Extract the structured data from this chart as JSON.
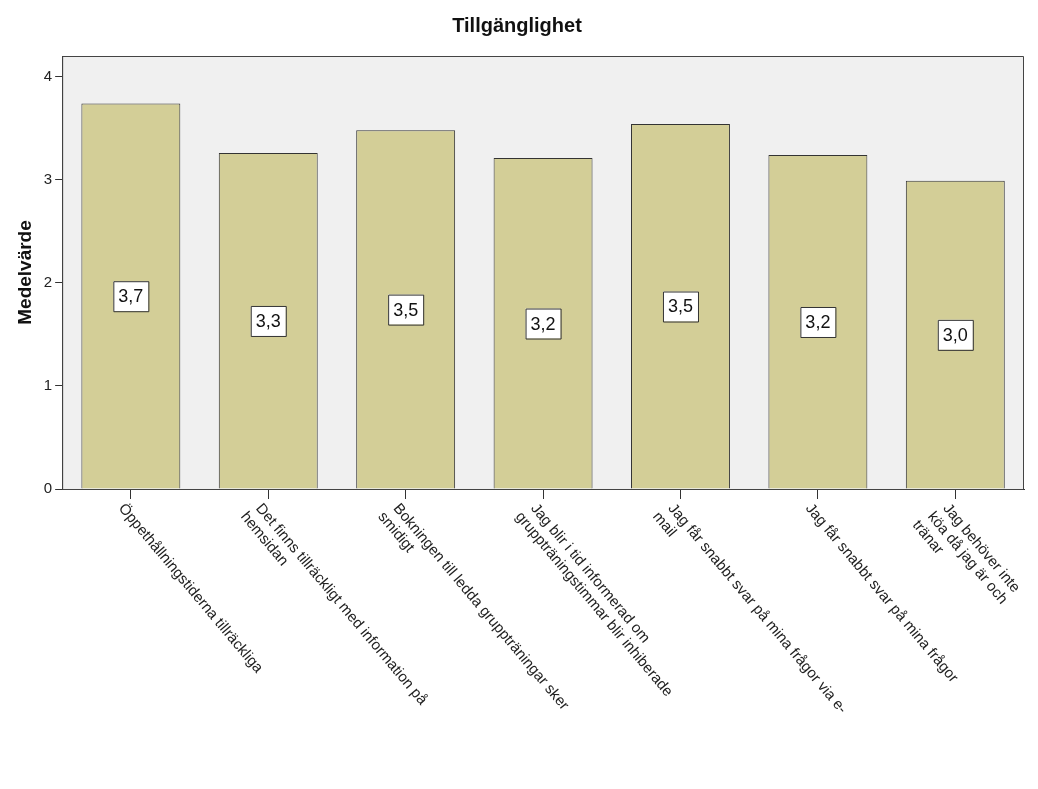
{
  "chart_data": {
    "type": "bar",
    "title": "Tillgänglighet",
    "ylabel": "Medelvärde",
    "categories": [
      "Öppethållningstiderna tillräckliga",
      "Det finns tillräckligt med information på\nhemsidan",
      "Bokningen till ledda gruppträningar sker\nsmidigt",
      "Jag blir i tid informerad om\ngruppträningstimmar blir inhiberade",
      "Jag får snabbt svar på mina frågor via e-\nmail",
      "Jag får snabbt svar på mina frågor",
      "Jag behöver inte\nköa då jag är och\ntränar"
    ],
    "values": [
      3.74,
      3.26,
      3.48,
      3.21,
      3.54,
      3.24,
      2.99
    ],
    "value_labels": [
      "3,7",
      "3,3",
      "3,5",
      "3,2",
      "3,5",
      "3,2",
      "3,0"
    ],
    "color": "#d3ce97",
    "ylim": [
      0,
      4.2
    ],
    "yticks": [
      0,
      1,
      2,
      3,
      4
    ],
    "grid": false,
    "legend": false
  }
}
